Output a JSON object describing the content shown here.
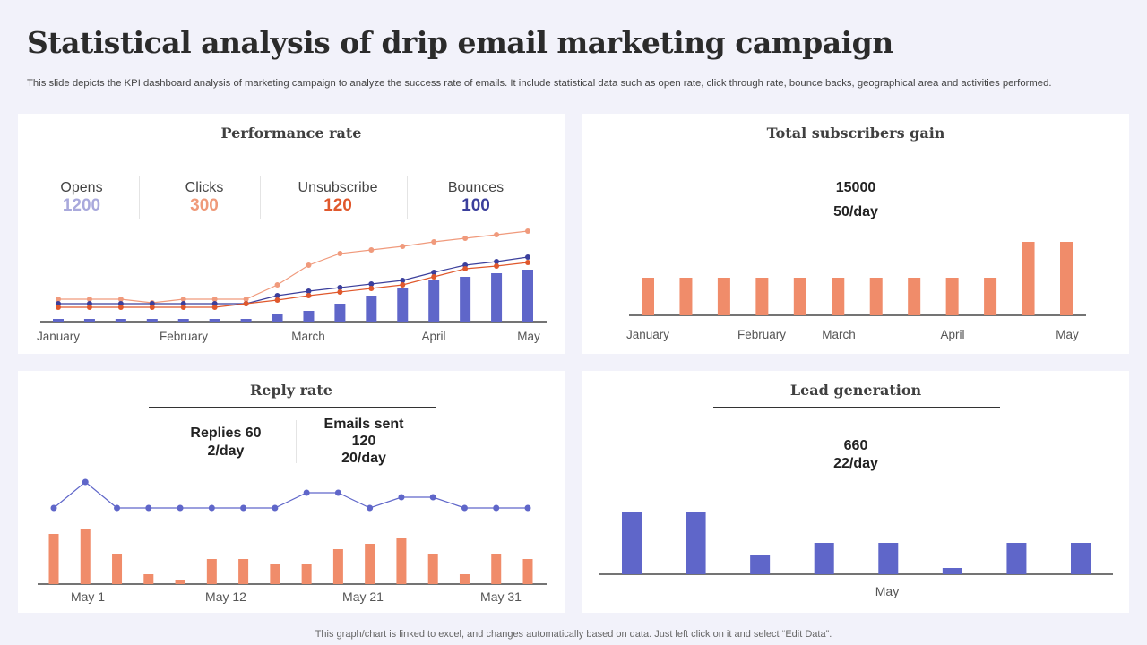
{
  "header": {
    "title": "Statistical analysis of drip email marketing campaign",
    "subtitle": "This slide depicts the KPI dashboard analysis of marketing campaign to analyze the success rate of emails. It include statistical data such as open rate, click through rate, bounce backs, geographical area and activities performed."
  },
  "footer": "This graph/chart is linked to excel,  and changes automatically based on data. Just left click on it and select “Edit Data”.",
  "colors": {
    "blue": "#5f66c9",
    "orange": "#f08c6a",
    "light_orange": "#f09a7c",
    "red_orange": "#e0582c",
    "dark_blue": "#3b3f9c",
    "opens": "#a9a9dc"
  },
  "performance": {
    "title": "Performance rate",
    "kpis": [
      {
        "label": "Opens",
        "value": "1200",
        "color": "#a9a9dc"
      },
      {
        "label": "Clicks",
        "value": "300",
        "color": "#ef9a7a"
      },
      {
        "label": "Unsubscribe",
        "value": "120",
        "color": "#e0582c"
      },
      {
        "label": "Bounces",
        "value": "100",
        "color": "#3b3f9c"
      }
    ]
  },
  "subscribers": {
    "title": "Total subscribers gain",
    "total": "15000",
    "rate": "50/day"
  },
  "reply": {
    "title": "Reply rate",
    "replies": "Replies 60",
    "replies_rate": "2/day",
    "sent_label": "Emails sent",
    "sent": "120",
    "sent_rate": "20/day"
  },
  "lead": {
    "title": "Lead generation",
    "total": "660",
    "rate": "22/day"
  },
  "chart_data": [
    {
      "type": "bar+line",
      "name": "performance",
      "categories_labels": [
        "January",
        "February",
        "March",
        "April",
        "May"
      ],
      "bars": [
        3,
        3,
        3,
        3,
        3,
        3,
        3,
        8,
        12,
        20,
        29,
        37,
        46,
        50,
        54,
        58
      ],
      "lines": [
        {
          "color": "#f09a7c",
          "values": [
            25,
            25,
            25,
            21,
            25,
            25,
            25,
            41,
            63,
            76,
            80,
            84,
            89,
            93,
            97,
            101
          ]
        },
        {
          "color": "#3b3f9c",
          "values": [
            20,
            20,
            20,
            20,
            20,
            20,
            20,
            29,
            34,
            38,
            42,
            46,
            55,
            63,
            67,
            72
          ]
        },
        {
          "color": "#e0582c",
          "values": [
            16,
            16,
            16,
            16,
            16,
            16,
            20,
            24,
            29,
            33,
            37,
            41,
            50,
            59,
            62,
            66
          ]
        }
      ]
    },
    {
      "type": "bar",
      "name": "subscribers",
      "categories_labels": [
        "January",
        "February",
        "March",
        "April",
        "May"
      ],
      "values": [
        42,
        42,
        42,
        42,
        42,
        42,
        42,
        42,
        42,
        42,
        82,
        82
      ]
    },
    {
      "type": "bar+line",
      "name": "reply",
      "categories_labels": [
        "May 1",
        "May 12",
        "May 21",
        "May 31"
      ],
      "bars": [
        56,
        62,
        34,
        11,
        5,
        28,
        28,
        22,
        22,
        39,
        45,
        51,
        34,
        11,
        34,
        28
      ],
      "lines": [
        {
          "color": "#5f66c9",
          "values": [
            85,
            114,
            85,
            85,
            85,
            85,
            85,
            85,
            102,
            102,
            85,
            97,
            97,
            85,
            85,
            85
          ]
        }
      ]
    },
    {
      "type": "bar",
      "name": "lead",
      "categories_labels": [
        "May"
      ],
      "values": [
        70,
        70,
        21,
        35,
        35,
        7,
        35,
        35
      ]
    }
  ]
}
